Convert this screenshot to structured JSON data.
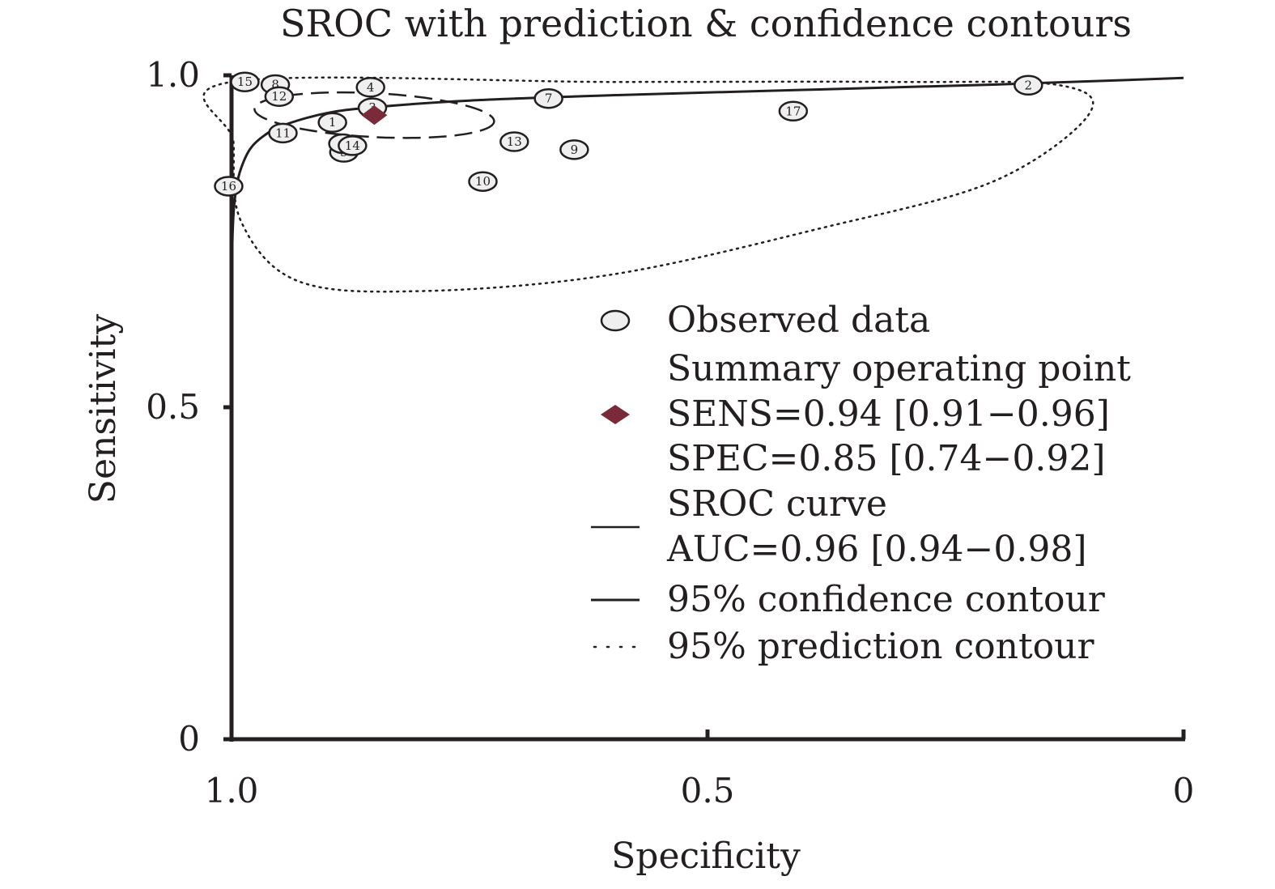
{
  "chart_data": {
    "type": "scatter",
    "title": "SROC with prediction & confidence contours",
    "xlabel": "Specificity",
    "ylabel": "Sensitivity",
    "x_reversed": true,
    "xlim": [
      1.0,
      0.0
    ],
    "ylim": [
      0.0,
      1.0
    ],
    "x_ticks": [
      {
        "value": 1.0,
        "label": "1.0"
      },
      {
        "value": 0.5,
        "label": "0.5"
      },
      {
        "value": 0.0,
        "label": "0"
      }
    ],
    "y_ticks": [
      {
        "value": 1.0,
        "label": "1.0"
      },
      {
        "value": 0.5,
        "label": "0.5"
      },
      {
        "value": 0.0,
        "label": "0"
      }
    ],
    "observed_data": [
      {
        "label": "1",
        "specificity": 0.894,
        "sensitivity": 0.929
      },
      {
        "label": "2",
        "specificity": 0.163,
        "sensitivity": 0.985
      },
      {
        "label": "3",
        "specificity": 0.852,
        "sensitivity": 0.951
      },
      {
        "label": "4",
        "specificity": 0.854,
        "sensitivity": 0.982
      },
      {
        "label": "5",
        "specificity": 0.882,
        "sensitivity": 0.884
      },
      {
        "label": "6",
        "specificity": 0.883,
        "sensitivity": 0.897
      },
      {
        "label": "7",
        "specificity": 0.667,
        "sensitivity": 0.965
      },
      {
        "label": "8",
        "specificity": 0.954,
        "sensitivity": 0.986
      },
      {
        "label": "9",
        "specificity": 0.64,
        "sensitivity": 0.888
      },
      {
        "label": "10",
        "specificity": 0.736,
        "sensitivity": 0.84
      },
      {
        "label": "11",
        "specificity": 0.946,
        "sensitivity": 0.913
      },
      {
        "label": "12",
        "specificity": 0.95,
        "sensitivity": 0.968
      },
      {
        "label": "13",
        "specificity": 0.703,
        "sensitivity": 0.9
      },
      {
        "label": "14",
        "specificity": 0.873,
        "sensitivity": 0.894
      },
      {
        "label": "15",
        "specificity": 0.986,
        "sensitivity": 0.99
      },
      {
        "label": "16",
        "specificity": 1.003,
        "sensitivity": 0.833
      },
      {
        "label": "17",
        "specificity": 0.41,
        "sensitivity": 0.946
      }
    ],
    "summary_point": {
      "specificity": 0.85,
      "sensitivity": 0.94,
      "color": "#7b2a3a"
    },
    "sroc_curve": [
      [
        1.0,
        0.0
      ],
      [
        0.9999,
        0.55
      ],
      [
        0.9995,
        0.72
      ],
      [
        0.998,
        0.79
      ],
      [
        0.995,
        0.83
      ],
      [
        0.99,
        0.86
      ],
      [
        0.98,
        0.89
      ],
      [
        0.965,
        0.91
      ],
      [
        0.945,
        0.925
      ],
      [
        0.9,
        0.943
      ],
      [
        0.85,
        0.952
      ],
      [
        0.75,
        0.962
      ],
      [
        0.6,
        0.97
      ],
      [
        0.4,
        0.978
      ],
      [
        0.2,
        0.986
      ],
      [
        0.0,
        0.996
      ]
    ],
    "confidence_contour": {
      "center": [
        0.85,
        0.94
      ],
      "half_width": 0.126,
      "half_height": 0.033,
      "rotation_deg": 3
    },
    "prediction_contour": [
      [
        1.0,
        0.99
      ],
      [
        0.6,
        0.99
      ],
      [
        0.3,
        0.99
      ],
      [
        0.13,
        0.985
      ],
      [
        0.1,
        0.94
      ],
      [
        0.2,
        0.84
      ],
      [
        0.38,
        0.77
      ],
      [
        0.6,
        0.7
      ],
      [
        0.8,
        0.675
      ],
      [
        0.93,
        0.69
      ],
      [
        0.99,
        0.78
      ],
      [
        0.998,
        0.9
      ],
      [
        1.0,
        0.99
      ]
    ],
    "legend": {
      "position": "bottom-right",
      "entries": [
        {
          "symbol": "ellipse",
          "lines": [
            "Observed data"
          ]
        },
        {
          "symbol": "diamond",
          "lines": [
            "Summary operating point",
            "SENS=0.94 [0.91−0.96]",
            "SPEC=0.85 [0.74−0.92]"
          ]
        },
        {
          "symbol": "solid",
          "lines": [
            "SROC curve",
            "AUC=0.96 [0.94−0.98]"
          ]
        },
        {
          "symbol": "dashed",
          "lines": [
            "95% confidence contour"
          ]
        },
        {
          "symbol": "dotted",
          "lines": [
            "95% prediction contour"
          ]
        }
      ]
    }
  }
}
